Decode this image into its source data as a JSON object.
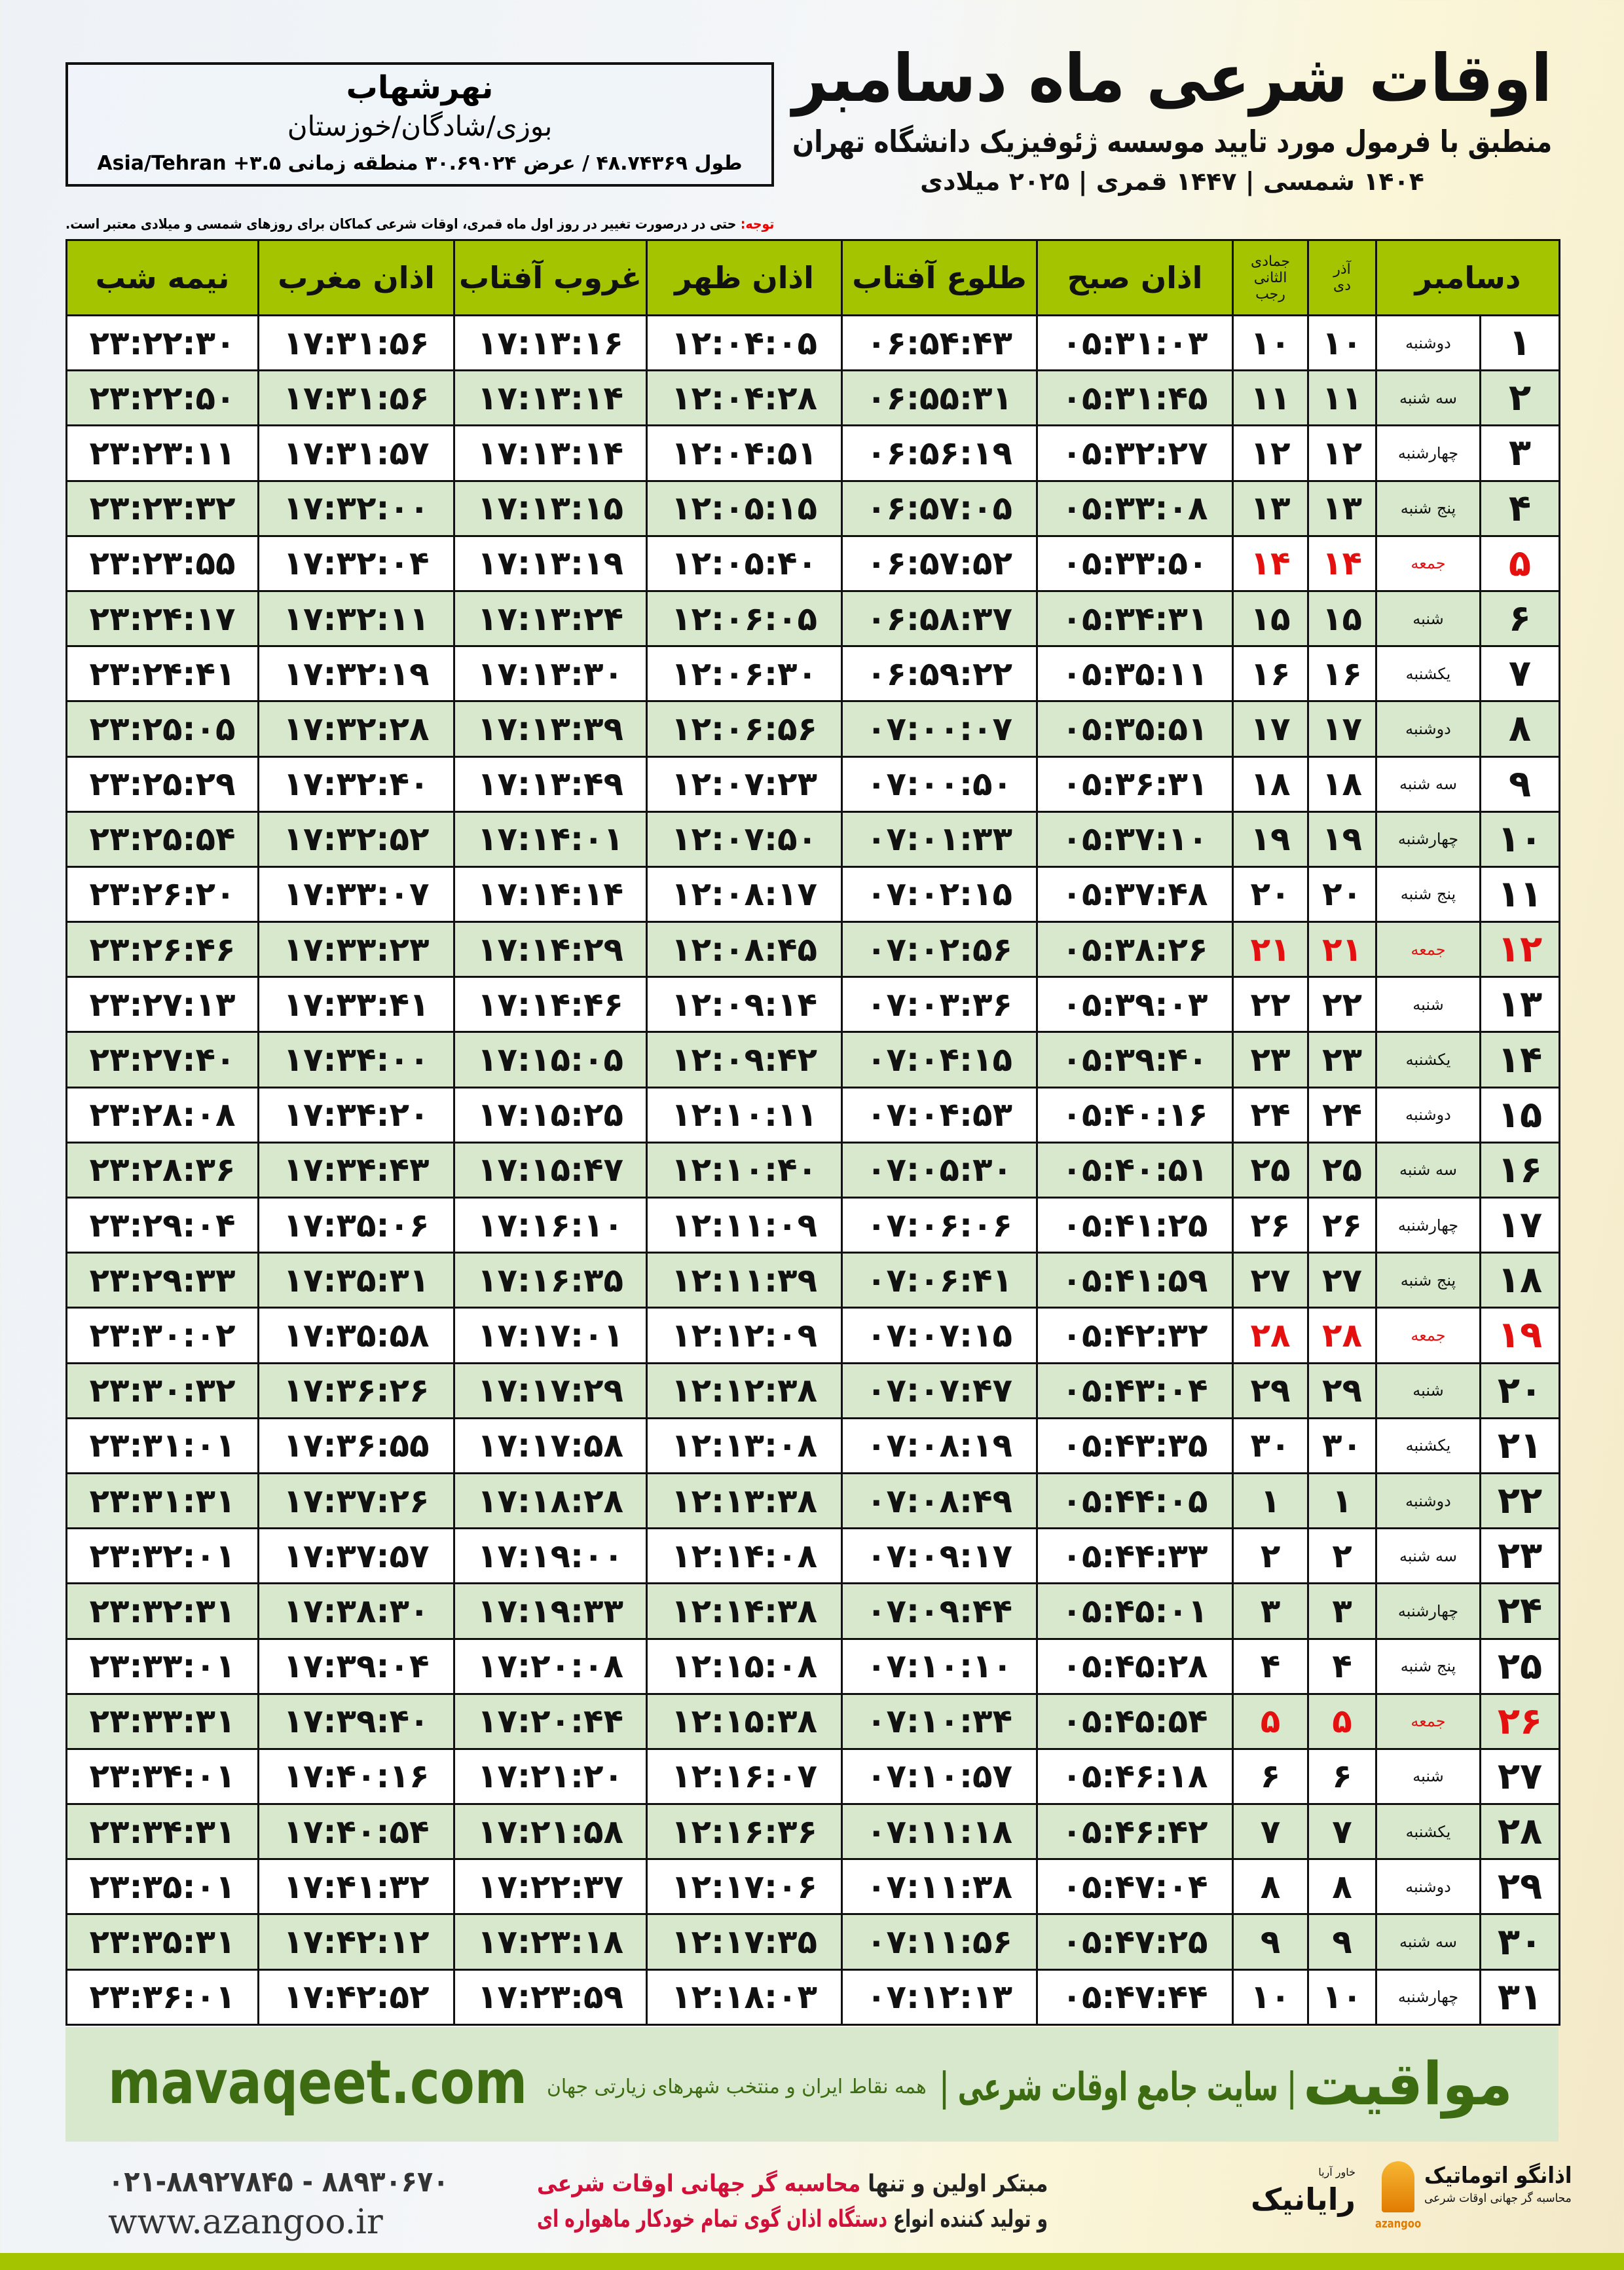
{
  "header": {
    "title": "اوقات شرعی ماه دسامبر",
    "subtitle": "منطبق با فرمول مورد تایید موسسه ژئوفیزیک دانشگاه تهران",
    "years": "۱۴۰۴ شمسی | ۱۴۴۷ قمری | ۲۰۲۵ میلادی"
  },
  "location": {
    "city": "نهرشهاب",
    "region": "بوزی/شادگان/خوزستان",
    "coords": "طول ۴۸.۷۴۳۶۹ / عرض ۳۰.۶۹۰۲۴ منطقه زمانی ۳.۵+ Asia/Tehran"
  },
  "note": {
    "label": "توجه:",
    "text": " حتی در درصورت تغییر در روز اول ماه قمری، اوقات شرعی کماکان برای روزهای شمسی و میلادی معتبر است."
  },
  "table": {
    "columns": {
      "month": "دسامبر",
      "dey": "دی",
      "azar": "آذر",
      "rajab": "رجب",
      "jumada": "جمادی الثانی",
      "fajr": "اذان صبح",
      "sunrise": "طلوع آفتاب",
      "dhuhr": "اذان ظهر",
      "sunset": "غروب آفتاب",
      "maghrib": "اذان مغرب",
      "midnight": "نیمه شب"
    },
    "friday_color": "#e41010",
    "header_color": "#a4c400",
    "alt_row_color": "#d8e8cc",
    "rows": [
      [
        "۱",
        "دوشنبه",
        "۱۰",
        "۱۰",
        "۰۵:۳۱:۰۳",
        "۰۶:۵۴:۴۳",
        "۱۲:۰۴:۰۵",
        "۱۷:۱۳:۱۶",
        "۱۷:۳۱:۵۶",
        "۲۳:۲۲:۳۰"
      ],
      [
        "۲",
        "سه شنبه",
        "۱۱",
        "۱۱",
        "۰۵:۳۱:۴۵",
        "۰۶:۵۵:۳۱",
        "۱۲:۰۴:۲۸",
        "۱۷:۱۳:۱۴",
        "۱۷:۳۱:۵۶",
        "۲۳:۲۲:۵۰"
      ],
      [
        "۳",
        "چهارشنبه",
        "۱۲",
        "۱۲",
        "۰۵:۳۲:۲۷",
        "۰۶:۵۶:۱۹",
        "۱۲:۰۴:۵۱",
        "۱۷:۱۳:۱۴",
        "۱۷:۳۱:۵۷",
        "۲۳:۲۳:۱۱"
      ],
      [
        "۴",
        "پنج شنبه",
        "۱۳",
        "۱۳",
        "۰۵:۳۳:۰۸",
        "۰۶:۵۷:۰۵",
        "۱۲:۰۵:۱۵",
        "۱۷:۱۳:۱۵",
        "۱۷:۳۲:۰۰",
        "۲۳:۲۳:۳۲"
      ],
      [
        "۵",
        "جمعه",
        "۱۴",
        "۱۴",
        "۰۵:۳۳:۵۰",
        "۰۶:۵۷:۵۲",
        "۱۲:۰۵:۴۰",
        "۱۷:۱۳:۱۹",
        "۱۷:۳۲:۰۴",
        "۲۳:۲۳:۵۵"
      ],
      [
        "۶",
        "شنبه",
        "۱۵",
        "۱۵",
        "۰۵:۳۴:۳۱",
        "۰۶:۵۸:۳۷",
        "۱۲:۰۶:۰۵",
        "۱۷:۱۳:۲۴",
        "۱۷:۳۲:۱۱",
        "۲۳:۲۴:۱۷"
      ],
      [
        "۷",
        "یکشنبه",
        "۱۶",
        "۱۶",
        "۰۵:۳۵:۱۱",
        "۰۶:۵۹:۲۲",
        "۱۲:۰۶:۳۰",
        "۱۷:۱۳:۳۰",
        "۱۷:۳۲:۱۹",
        "۲۳:۲۴:۴۱"
      ],
      [
        "۸",
        "دوشنبه",
        "۱۷",
        "۱۷",
        "۰۵:۳۵:۵۱",
        "۰۷:۰۰:۰۷",
        "۱۲:۰۶:۵۶",
        "۱۷:۱۳:۳۹",
        "۱۷:۳۲:۲۸",
        "۲۳:۲۵:۰۵"
      ],
      [
        "۹",
        "سه شنبه",
        "۱۸",
        "۱۸",
        "۰۵:۳۶:۳۱",
        "۰۷:۰۰:۵۰",
        "۱۲:۰۷:۲۳",
        "۱۷:۱۳:۴۹",
        "۱۷:۳۲:۴۰",
        "۲۳:۲۵:۲۹"
      ],
      [
        "۱۰",
        "چهارشنبه",
        "۱۹",
        "۱۹",
        "۰۵:۳۷:۱۰",
        "۰۷:۰۱:۳۳",
        "۱۲:۰۷:۵۰",
        "۱۷:۱۴:۰۱",
        "۱۷:۳۲:۵۲",
        "۲۳:۲۵:۵۴"
      ],
      [
        "۱۱",
        "پنج شنبه",
        "۲۰",
        "۲۰",
        "۰۵:۳۷:۴۸",
        "۰۷:۰۲:۱۵",
        "۱۲:۰۸:۱۷",
        "۱۷:۱۴:۱۴",
        "۱۷:۳۳:۰۷",
        "۲۳:۲۶:۲۰"
      ],
      [
        "۱۲",
        "جمعه",
        "۲۱",
        "۲۱",
        "۰۵:۳۸:۲۶",
        "۰۷:۰۲:۵۶",
        "۱۲:۰۸:۴۵",
        "۱۷:۱۴:۲۹",
        "۱۷:۳۳:۲۳",
        "۲۳:۲۶:۴۶"
      ],
      [
        "۱۳",
        "شنبه",
        "۲۲",
        "۲۲",
        "۰۵:۳۹:۰۳",
        "۰۷:۰۳:۳۶",
        "۱۲:۰۹:۱۴",
        "۱۷:۱۴:۴۶",
        "۱۷:۳۳:۴۱",
        "۲۳:۲۷:۱۳"
      ],
      [
        "۱۴",
        "یکشنبه",
        "۲۳",
        "۲۳",
        "۰۵:۳۹:۴۰",
        "۰۷:۰۴:۱۵",
        "۱۲:۰۹:۴۲",
        "۱۷:۱۵:۰۵",
        "۱۷:۳۴:۰۰",
        "۲۳:۲۷:۴۰"
      ],
      [
        "۱۵",
        "دوشنبه",
        "۲۴",
        "۲۴",
        "۰۵:۴۰:۱۶",
        "۰۷:۰۴:۵۳",
        "۱۲:۱۰:۱۱",
        "۱۷:۱۵:۲۵",
        "۱۷:۳۴:۲۰",
        "۲۳:۲۸:۰۸"
      ],
      [
        "۱۶",
        "سه شنبه",
        "۲۵",
        "۲۵",
        "۰۵:۴۰:۵۱",
        "۰۷:۰۵:۳۰",
        "۱۲:۱۰:۴۰",
        "۱۷:۱۵:۴۷",
        "۱۷:۳۴:۴۳",
        "۲۳:۲۸:۳۶"
      ],
      [
        "۱۷",
        "چهارشنبه",
        "۲۶",
        "۲۶",
        "۰۵:۴۱:۲۵",
        "۰۷:۰۶:۰۶",
        "۱۲:۱۱:۰۹",
        "۱۷:۱۶:۱۰",
        "۱۷:۳۵:۰۶",
        "۲۳:۲۹:۰۴"
      ],
      [
        "۱۸",
        "پنج شنبه",
        "۲۷",
        "۲۷",
        "۰۵:۴۱:۵۹",
        "۰۷:۰۶:۴۱",
        "۱۲:۱۱:۳۹",
        "۱۷:۱۶:۳۵",
        "۱۷:۳۵:۳۱",
        "۲۳:۲۹:۳۳"
      ],
      [
        "۱۹",
        "جمعه",
        "۲۸",
        "۲۸",
        "۰۵:۴۲:۳۲",
        "۰۷:۰۷:۱۵",
        "۱۲:۱۲:۰۹",
        "۱۷:۱۷:۰۱",
        "۱۷:۳۵:۵۸",
        "۲۳:۳۰:۰۲"
      ],
      [
        "۲۰",
        "شنبه",
        "۲۹",
        "۲۹",
        "۰۵:۴۳:۰۴",
        "۰۷:۰۷:۴۷",
        "۱۲:۱۲:۳۸",
        "۱۷:۱۷:۲۹",
        "۱۷:۳۶:۲۶",
        "۲۳:۳۰:۳۲"
      ],
      [
        "۲۱",
        "یکشنبه",
        "۳۰",
        "۳۰",
        "۰۵:۴۳:۳۵",
        "۰۷:۰۸:۱۹",
        "۱۲:۱۳:۰۸",
        "۱۷:۱۷:۵۸",
        "۱۷:۳۶:۵۵",
        "۲۳:۳۱:۰۱"
      ],
      [
        "۲۲",
        "دوشنبه",
        "۱",
        "۱",
        "۰۵:۴۴:۰۵",
        "۰۷:۰۸:۴۹",
        "۱۲:۱۳:۳۸",
        "۱۷:۱۸:۲۸",
        "۱۷:۳۷:۲۶",
        "۲۳:۳۱:۳۱"
      ],
      [
        "۲۳",
        "سه شنبه",
        "۲",
        "۲",
        "۰۵:۴۴:۳۳",
        "۰۷:۰۹:۱۷",
        "۱۲:۱۴:۰۸",
        "۱۷:۱۹:۰۰",
        "۱۷:۳۷:۵۷",
        "۲۳:۳۲:۰۱"
      ],
      [
        "۲۴",
        "چهارشنبه",
        "۳",
        "۳",
        "۰۵:۴۵:۰۱",
        "۰۷:۰۹:۴۴",
        "۱۲:۱۴:۳۸",
        "۱۷:۱۹:۳۳",
        "۱۷:۳۸:۳۰",
        "۲۳:۳۲:۳۱"
      ],
      [
        "۲۵",
        "پنج شنبه",
        "۴",
        "۴",
        "۰۵:۴۵:۲۸",
        "۰۷:۱۰:۱۰",
        "۱۲:۱۵:۰۸",
        "۱۷:۲۰:۰۸",
        "۱۷:۳۹:۰۴",
        "۲۳:۳۳:۰۱"
      ],
      [
        "۲۶",
        "جمعه",
        "۵",
        "۵",
        "۰۵:۴۵:۵۴",
        "۰۷:۱۰:۳۴",
        "۱۲:۱۵:۳۸",
        "۱۷:۲۰:۴۴",
        "۱۷:۳۹:۴۰",
        "۲۳:۳۳:۳۱"
      ],
      [
        "۲۷",
        "شنبه",
        "۶",
        "۶",
        "۰۵:۴۶:۱۸",
        "۰۷:۱۰:۵۷",
        "۱۲:۱۶:۰۷",
        "۱۷:۲۱:۲۰",
        "۱۷:۴۰:۱۶",
        "۲۳:۳۴:۰۱"
      ],
      [
        "۲۸",
        "یکشنبه",
        "۷",
        "۷",
        "۰۵:۴۶:۴۲",
        "۰۷:۱۱:۱۸",
        "۱۲:۱۶:۳۶",
        "۱۷:۲۱:۵۸",
        "۱۷:۴۰:۵۴",
        "۲۳:۳۴:۳۱"
      ],
      [
        "۲۹",
        "دوشنبه",
        "۸",
        "۸",
        "۰۵:۴۷:۰۴",
        "۰۷:۱۱:۳۸",
        "۱۲:۱۷:۰۶",
        "۱۷:۲۲:۳۷",
        "۱۷:۴۱:۳۲",
        "۲۳:۳۵:۰۱"
      ],
      [
        "۳۰",
        "سه شنبه",
        "۹",
        "۹",
        "۰۵:۴۷:۲۵",
        "۰۷:۱۱:۵۶",
        "۱۲:۱۷:۳۵",
        "۱۷:۲۳:۱۸",
        "۱۷:۴۲:۱۲",
        "۲۳:۳۵:۳۱"
      ],
      [
        "۳۱",
        "چهارشنبه",
        "۱۰",
        "۱۰",
        "۰۵:۴۷:۴۴",
        "۰۷:۱۲:۱۳",
        "۱۲:۱۸:۰۳",
        "۱۷:۲۳:۵۹",
        "۱۷:۴۲:۵۲",
        "۲۳:۳۶:۰۱"
      ]
    ]
  },
  "band": {
    "site": "mavaqeet.com",
    "brand": "مواقیت",
    "sep": "| سایت جامع اوقات شرعی |",
    "tag": "همه نقاط ایران و منتخب شهرهای زیارتی جهان"
  },
  "footer": {
    "phone": "۰۲۱-۸۸۹۲۷۸۴۵ - ۸۸۹۳۰۶۷۰",
    "web": "www.azangoo.ir",
    "line1_a": "مبتکر اولین و تنها ",
    "line1_b": "محاسبه گر جهانی اوقات شرعی",
    "line2_a": "و تولید کننده انواع ",
    "line2_b": "دستگاه اذان گوی تمام خودکار ماهواره ای",
    "logo_azangoo": "اذانگو اتوماتیک",
    "logo_azangoo_sub": "محاسبه گر جهانی اوقات شرعی",
    "logo_azangoo_en": "azangoo",
    "logo_rayanik": "رایانیک",
    "logo_rayanik_sub": "خاور آریا"
  }
}
